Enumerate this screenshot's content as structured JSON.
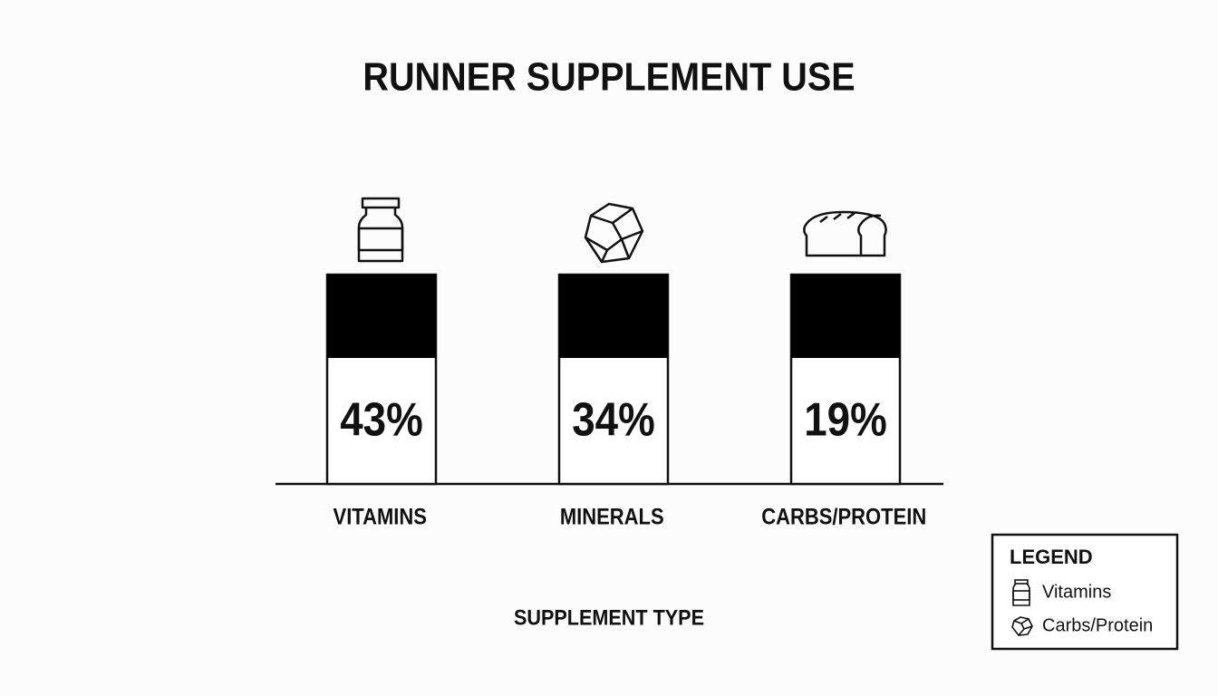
{
  "chart_data": {
    "type": "bar",
    "title": "RUNNER SUPPLEMENT USE",
    "categories": [
      "VITAMINS",
      "MINERALS",
      "CARBS/PROTEIN"
    ],
    "values": [
      43,
      34,
      19
    ],
    "value_labels": [
      "43%",
      "34%",
      "19%"
    ],
    "x_label": "SUPPLEMENT TYPE",
    "legend": {
      "title": "LEGEND",
      "entries": [
        "Vitamins",
        "Carbs/Protein"
      ]
    }
  }
}
